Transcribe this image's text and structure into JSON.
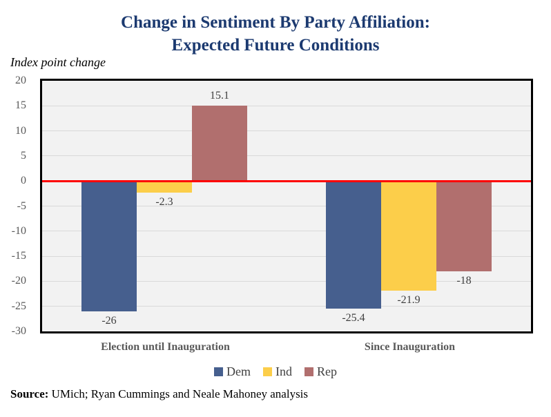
{
  "title": {
    "line1": "Change in Sentiment By Party Affiliation:",
    "line2": "Expected Future Conditions"
  },
  "axis_note": "Index point change",
  "source": {
    "label": "Source:",
    "text": " UMich; Ryan Cummings and Neale Mahoney analysis"
  },
  "chart_data": {
    "type": "bar",
    "title": "Change in Sentiment By Party Affiliation: Expected Future Conditions",
    "ylabel": "Index point change",
    "categories": [
      "Election until Inauguration",
      "Since Inauguration"
    ],
    "series": [
      {
        "name": "Dem",
        "color": "#465f8e",
        "values": [
          -26,
          -25.4
        ],
        "labels": [
          "-26",
          "-25.4"
        ]
      },
      {
        "name": "Ind",
        "color": "#fcce4a",
        "values": [
          -2.3,
          -21.9
        ],
        "labels": [
          "-2.3",
          "-21.9"
        ]
      },
      {
        "name": "Rep",
        "color": "#b16f6e",
        "values": [
          15.1,
          -18
        ],
        "labels": [
          "15.1",
          "-18"
        ]
      }
    ],
    "ylim": [
      -30,
      20
    ],
    "yticks": [
      20,
      15,
      10,
      5,
      0,
      -5,
      -10,
      -15,
      -20,
      -25,
      -30
    ],
    "grid": true,
    "legend_position": "bottom",
    "plot_bg": "#f2f2f2",
    "grid_color": "#d9d9d9",
    "zero_line_color": "#fd0000",
    "border_color": "#000000"
  }
}
